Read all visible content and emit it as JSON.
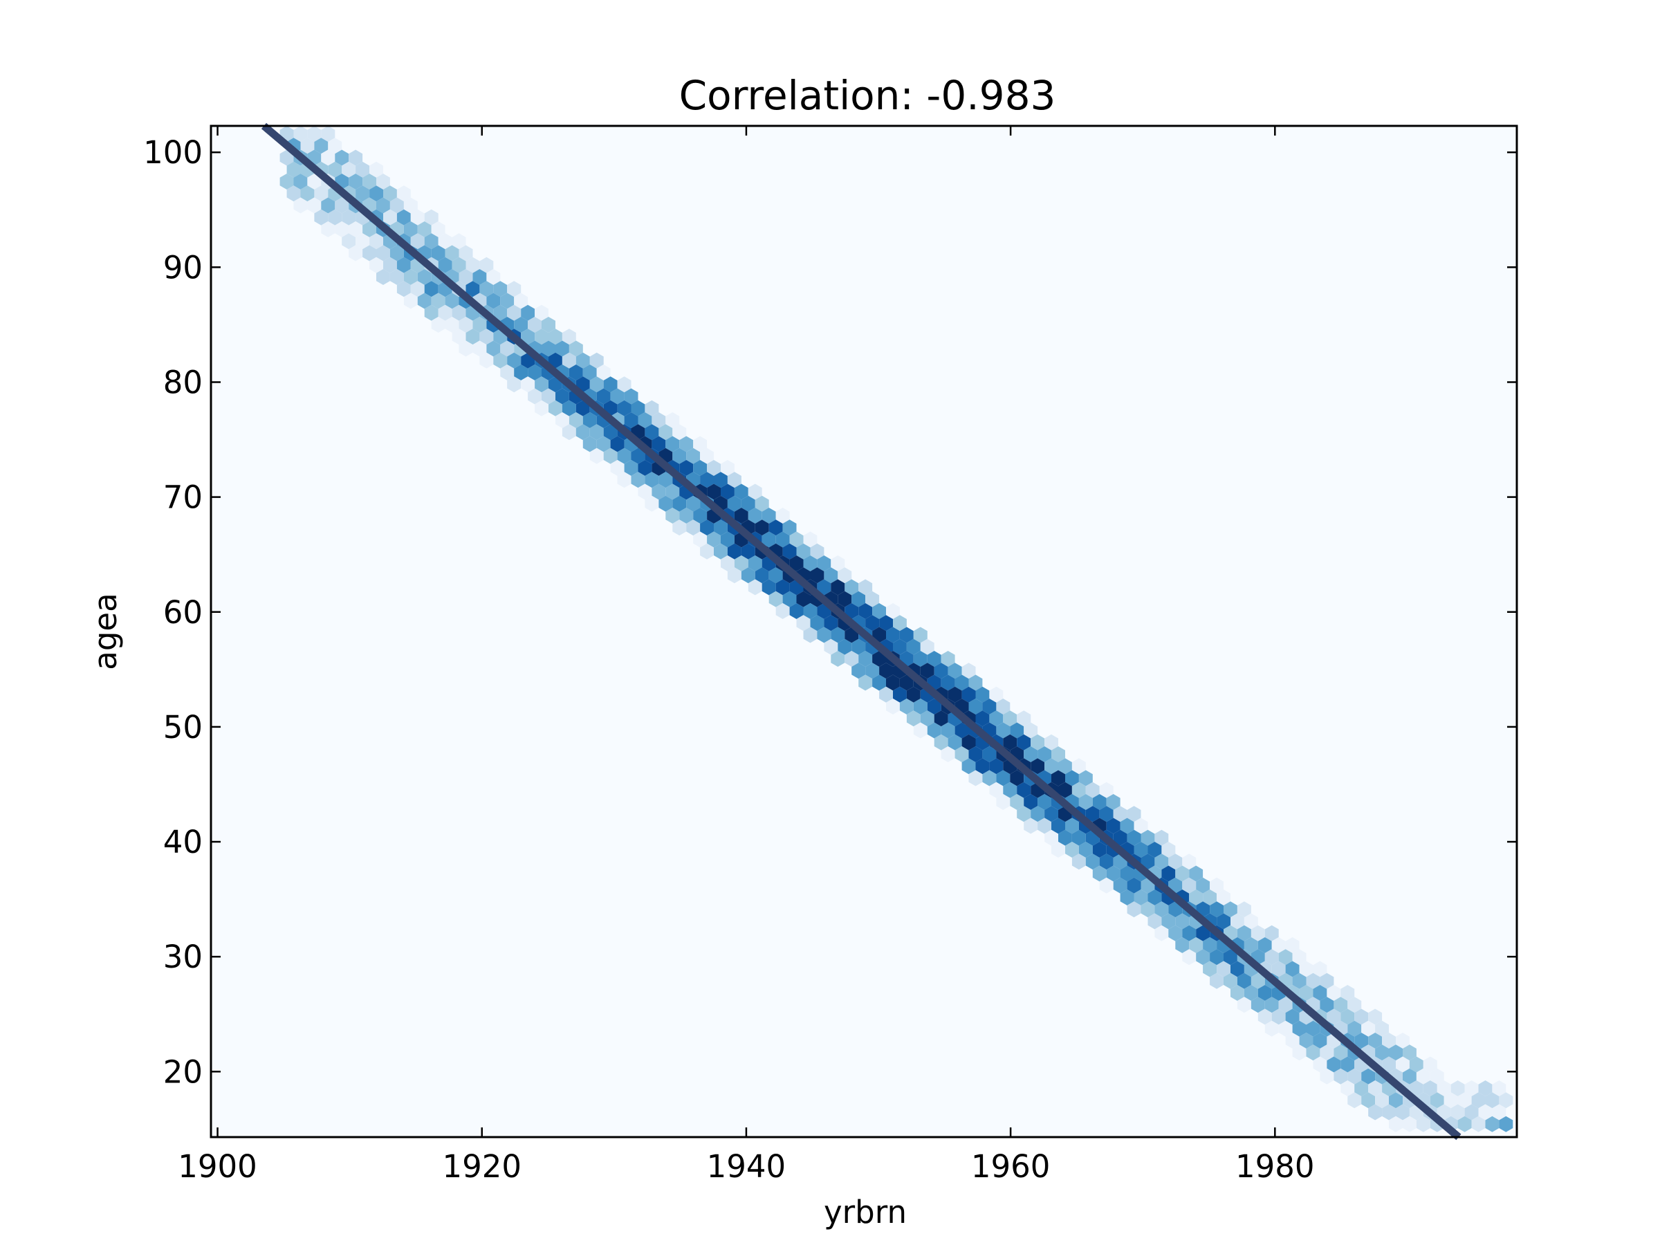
{
  "chart_data": {
    "type": "hexbin",
    "title": "Correlation: -0.983",
    "xlabel": "yrbrn",
    "ylabel": "agea",
    "xlim": [
      1899.5,
      1998.3
    ],
    "ylim": [
      14.3,
      102.3
    ],
    "xticks": [
      1900,
      1920,
      1940,
      1960,
      1980
    ],
    "yticks": [
      20,
      30,
      40,
      50,
      60,
      70,
      80,
      90,
      100
    ],
    "xtick_labels": [
      "1900",
      "1920",
      "1940",
      "1960",
      "1980"
    ],
    "ytick_labels": [
      "20",
      "30",
      "40",
      "50",
      "60",
      "70",
      "80",
      "90",
      "100"
    ],
    "colormap": "Blues",
    "background_color": "#f7fbff",
    "line_color": "#35466f",
    "fit_line": {
      "x": [
        1903.5,
        1993.9
      ],
      "y": [
        102.3,
        14.3
      ]
    },
    "band": {
      "center": [
        [
          1903.5,
          102.3
        ],
        [
          1920,
          86.2
        ],
        [
          1940,
          66.8
        ],
        [
          1960,
          47.3
        ],
        [
          1980,
          27.8
        ],
        [
          1993.9,
          14.3
        ]
      ],
      "x_extent": [
        1905,
        1998
      ],
      "peak_x": 1950,
      "half_width_age": 4.5
    },
    "grid": false,
    "legend": null
  }
}
